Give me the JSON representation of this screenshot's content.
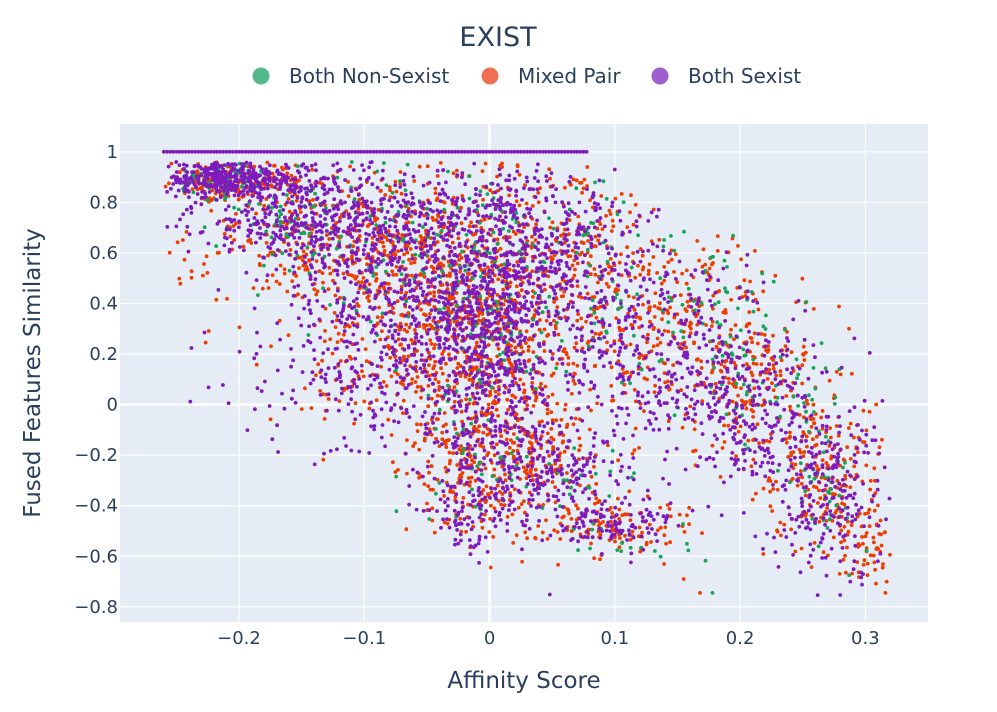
{
  "chart_data": {
    "type": "scatter",
    "title": "EXIST",
    "xlabel": "Affinity Score",
    "ylabel": "Fused Features Similarity",
    "xlim": [
      -0.295,
      0.35
    ],
    "ylim": [
      -0.86,
      1.11
    ],
    "x_ticks": [
      -0.2,
      -0.1,
      0,
      0.1,
      0.2,
      0.3
    ],
    "x_tick_labels": [
      "−0.2",
      "−0.1",
      "0",
      "0.1",
      "0.2",
      "0.3"
    ],
    "y_ticks": [
      1,
      0.8,
      0.6,
      0.4,
      0.2,
      0,
      -0.2,
      -0.4,
      -0.6,
      -0.8
    ],
    "y_tick_labels": [
      "1",
      "0.8",
      "0.6",
      "0.4",
      "0.2",
      "0",
      "−0.2",
      "−0.4",
      "−0.6",
      "−0.8"
    ],
    "grid": true,
    "legend_position": "top-center",
    "plot_background": "#e5ecf6",
    "series": [
      {
        "name": "Both Non-Sexist",
        "color": "#18a35a",
        "legend_color": "#54b98a",
        "clusters": [
          {
            "x": -0.22,
            "y": 0.9,
            "sx": 0.02,
            "sy": 0.04,
            "n": 60
          },
          {
            "x": -0.14,
            "y": 0.75,
            "sx": 0.05,
            "sy": 0.1,
            "n": 90
          },
          {
            "x": -0.05,
            "y": 0.55,
            "sx": 0.05,
            "sy": 0.18,
            "n": 110
          },
          {
            "x": 0.0,
            "y": 0.35,
            "sx": 0.025,
            "sy": 0.3,
            "n": 80
          },
          {
            "x": 0.08,
            "y": 0.55,
            "sx": 0.04,
            "sy": 0.2,
            "n": 70
          },
          {
            "x": 0.17,
            "y": 0.3,
            "sx": 0.04,
            "sy": 0.15,
            "n": 70
          },
          {
            "x": 0.23,
            "y": 0.05,
            "sx": 0.03,
            "sy": 0.15,
            "n": 45
          },
          {
            "x": 0.27,
            "y": -0.3,
            "sx": 0.02,
            "sy": 0.12,
            "n": 35
          },
          {
            "x": 0.06,
            "y": -0.3,
            "sx": 0.03,
            "sy": 0.08,
            "n": 25
          },
          {
            "x": 0.12,
            "y": -0.55,
            "sx": 0.025,
            "sy": 0.05,
            "n": 15
          },
          {
            "x": -0.02,
            "y": -0.2,
            "sx": 0.03,
            "sy": 0.12,
            "n": 25
          }
        ],
        "extra_points": [
          [
            0.287,
            -0.675
          ],
          [
            -0.04,
            -0.31
          ],
          [
            0.26,
            -0.47
          ],
          [
            0.178,
            -0.745
          ]
        ]
      },
      {
        "name": "Mixed Pair",
        "color": "#ef3d00",
        "legend_color": "#ef7154",
        "clusters": [
          {
            "x": -0.2,
            "y": 0.88,
            "sx": 0.025,
            "sy": 0.05,
            "n": 180
          },
          {
            "x": -0.12,
            "y": 0.65,
            "sx": 0.055,
            "sy": 0.15,
            "n": 350
          },
          {
            "x": -0.04,
            "y": 0.45,
            "sx": 0.045,
            "sy": 0.25,
            "n": 420
          },
          {
            "x": 0.0,
            "y": 0.2,
            "sx": 0.025,
            "sy": 0.35,
            "n": 350
          },
          {
            "x": 0.06,
            "y": 0.55,
            "sx": 0.04,
            "sy": 0.22,
            "n": 260
          },
          {
            "x": 0.14,
            "y": 0.35,
            "sx": 0.045,
            "sy": 0.2,
            "n": 260
          },
          {
            "x": 0.21,
            "y": 0.05,
            "sx": 0.035,
            "sy": 0.17,
            "n": 200
          },
          {
            "x": 0.27,
            "y": -0.32,
            "sx": 0.025,
            "sy": 0.15,
            "n": 180
          },
          {
            "x": 0.3,
            "y": -0.55,
            "sx": 0.012,
            "sy": 0.08,
            "n": 50
          },
          {
            "x": 0.04,
            "y": -0.2,
            "sx": 0.025,
            "sy": 0.12,
            "n": 160
          },
          {
            "x": 0.1,
            "y": -0.48,
            "sx": 0.03,
            "sy": 0.06,
            "n": 120
          },
          {
            "x": -0.02,
            "y": -0.3,
            "sx": 0.025,
            "sy": 0.14,
            "n": 120
          },
          {
            "x": -0.06,
            "y": 0.15,
            "sx": 0.06,
            "sy": 0.15,
            "n": 180
          }
        ],
        "extra_points": [
          [
            0.316,
            -0.745
          ],
          [
            0.317,
            -0.7
          ],
          [
            0.168,
            -0.745
          ],
          [
            0.155,
            -0.69
          ],
          [
            -0.245,
            0.93
          ],
          [
            -0.165,
            0.93
          ],
          [
            0.01,
            0.94
          ],
          [
            0.078,
            0.94
          ]
        ]
      },
      {
        "name": "Both Sexist",
        "color": "#7d1bbd",
        "legend_color": "#9e5fcc",
        "clusters": [
          {
            "x": -0.21,
            "y": 0.9,
            "sx": 0.03,
            "sy": 0.04,
            "n": 320
          },
          {
            "x": -0.14,
            "y": 0.75,
            "sx": 0.05,
            "sy": 0.1,
            "n": 450
          },
          {
            "x": -0.06,
            "y": 0.5,
            "sx": 0.05,
            "sy": 0.2,
            "n": 550
          },
          {
            "x": 0.0,
            "y": 0.3,
            "sx": 0.025,
            "sy": 0.35,
            "n": 550
          },
          {
            "x": 0.05,
            "y": 0.6,
            "sx": 0.04,
            "sy": 0.2,
            "n": 320
          },
          {
            "x": 0.13,
            "y": 0.25,
            "sx": 0.05,
            "sy": 0.2,
            "n": 320
          },
          {
            "x": 0.2,
            "y": 0.0,
            "sx": 0.04,
            "sy": 0.15,
            "n": 260
          },
          {
            "x": 0.27,
            "y": -0.35,
            "sx": 0.025,
            "sy": 0.15,
            "n": 220
          },
          {
            "x": 0.05,
            "y": -0.25,
            "sx": 0.03,
            "sy": 0.1,
            "n": 200
          },
          {
            "x": 0.1,
            "y": -0.47,
            "sx": 0.025,
            "sy": 0.05,
            "n": 110
          },
          {
            "x": -0.02,
            "y": -0.35,
            "sx": 0.02,
            "sy": 0.12,
            "n": 110
          },
          {
            "x": -0.08,
            "y": 0.1,
            "sx": 0.06,
            "sy": 0.15,
            "n": 260
          }
        ],
        "extra_points": [
          [
            0.31,
            -0.62
          ],
          [
            0.288,
            -0.7
          ],
          [
            0.312,
            -0.59
          ],
          [
            0.28,
            -0.62
          ],
          [
            -0.025,
            -0.55
          ],
          [
            -0.015,
            -0.56
          ],
          [
            0.1,
            0.93
          ],
          [
            -0.24,
            0.82
          ]
        ],
        "line_at_y1": {
          "x_from": -0.26,
          "x_to": 0.08,
          "y": 1.0
        }
      }
    ]
  }
}
